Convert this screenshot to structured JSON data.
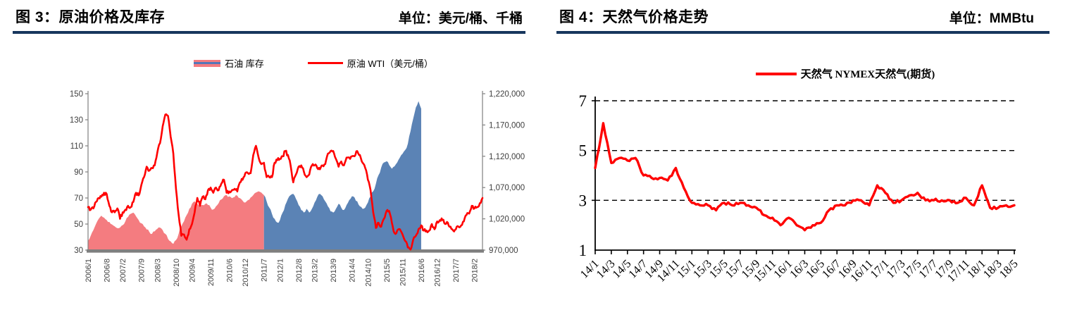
{
  "headers": {
    "fig3": {
      "title": "图 3：原油价格及库存",
      "unit": "单位：美元/桶、千桶"
    },
    "fig4": {
      "title": "图 4：天然气价格走势",
      "unit": "单位：MMBtu"
    }
  },
  "colors": {
    "line_red": "#FF0000",
    "area_pink": "#F47C80",
    "area_blue": "#5B83B5",
    "legend_inner_blue": "#5577B8",
    "header_rule_navy": "#17365D",
    "axis_gray": "#808080",
    "baseline_gray": "#7F7F7F",
    "label_dark": "#3F3F3F",
    "black": "#000000"
  },
  "chart_data": [
    {
      "id": "fig3",
      "type": "line",
      "title": "图 3：原油价格及库存",
      "unit": "美元/桶、千桶",
      "x_start": "2006/1",
      "x_labels": [
        "2006/1",
        "2006/8",
        "2007/2",
        "2007/9",
        "2008/3",
        "2008/10",
        "2009/4",
        "2009/11",
        "2010/6",
        "2010/12",
        "2011/7",
        "2012/1",
        "2012/8",
        "2013/2",
        "2013/9",
        "2014/4",
        "2014/10",
        "2015/5",
        "2015/11",
        "2016/6",
        "2016/12",
        "2017/7",
        "2018/2"
      ],
      "left_axis": {
        "min": 30,
        "max": 150,
        "ticks": [
          30,
          50,
          70,
          90,
          110,
          130,
          150
        ]
      },
      "right_axis": {
        "min": 970000,
        "max": 1220000,
        "tick_labels": [
          "970,000",
          "1,020,000",
          "1,070,000",
          "1,120,000",
          "1,170,000",
          "1,220,000"
        ]
      },
      "legend": [
        {
          "label": "石油 库存",
          "swatch": "area",
          "fill": "#F47C80",
          "line": "#5577B8"
        },
        {
          "label": "原油 WTI（美元/桶）",
          "swatch": "line",
          "color": "#FF0000"
        }
      ],
      "series": [
        {
          "name": "石油 库存",
          "axis": "right",
          "kind": "area",
          "months": "2006/1-2016/6",
          "fill_until_2011_6": "#F47C80",
          "fill_from_2011_7": "#5B83B5",
          "color_switch_month": "2011/7",
          "values": [
            985000,
            993000,
            1002000,
            1012000,
            1020000,
            1025000,
            1022000,
            1018000,
            1015000,
            1011000,
            1008000,
            1005000,
            1006000,
            1010000,
            1016000,
            1023000,
            1028000,
            1030000,
            1024000,
            1018000,
            1013000,
            1008000,
            1003000,
            999000,
            996000,
            1000000,
            1004000,
            1006000,
            1002000,
            996000,
            988000,
            984000,
            980000,
            986000,
            996000,
            1008000,
            1016000,
            1026000,
            1036000,
            1044000,
            1048000,
            1044000,
            1040000,
            1042000,
            1044000,
            1042000,
            1038000,
            1035000,
            1040000,
            1045000,
            1051000,
            1056000,
            1058000,
            1056000,
            1053000,
            1055000,
            1057000,
            1053000,
            1049000,
            1046000,
            1050000,
            1054000,
            1058000,
            1062000,
            1064000,
            1062000,
            1058000,
            1048000,
            1038000,
            1028000,
            1020000,
            1014000,
            1018000,
            1030000,
            1042000,
            1052000,
            1058000,
            1060000,
            1052000,
            1042000,
            1034000,
            1030000,
            1036000,
            1030000,
            1036000,
            1046000,
            1055000,
            1060000,
            1056000,
            1048000,
            1040000,
            1032000,
            1030000,
            1036000,
            1044000,
            1038000,
            1034000,
            1042000,
            1050000,
            1056000,
            1054000,
            1048000,
            1040000,
            1036000,
            1038000,
            1046000,
            1056000,
            1064000,
            1076000,
            1090000,
            1102000,
            1110000,
            1112000,
            1106000,
            1100000,
            1104000,
            1110000,
            1118000,
            1124000,
            1130000,
            1140000,
            1160000,
            1180000,
            1198000,
            1208000,
            1196000
          ]
        },
        {
          "name": "原油 WTI（美元/桶）",
          "axis": "left",
          "kind": "line",
          "color": "#FF0000",
          "months": "2006/1-2018/5",
          "values": [
            63,
            61,
            62,
            67,
            70,
            71,
            74,
            73,
            64,
            59,
            59,
            62,
            54,
            59,
            61,
            64,
            63,
            67,
            74,
            72,
            80,
            86,
            94,
            91,
            93,
            95,
            105,
            112,
            125,
            134,
            133,
            117,
            104,
            77,
            57,
            41,
            42,
            38,
            46,
            50,
            59,
            70,
            64,
            71,
            69,
            76,
            78,
            74,
            78,
            76,
            81,
            84,
            74,
            75,
            76,
            77,
            75,
            82,
            84,
            89,
            89,
            89,
            103,
            110,
            101,
            96,
            97,
            86,
            86,
            86,
            97,
            99,
            100,
            102,
            106,
            103,
            95,
            82,
            88,
            94,
            95,
            90,
            86,
            88,
            95,
            95,
            93,
            92,
            95,
            96,
            104,
            106,
            106,
            100,
            94,
            98,
            95,
            101,
            101,
            102,
            102,
            106,
            103,
            97,
            93,
            84,
            76,
            59,
            47,
            51,
            48,
            54,
            60,
            60,
            51,
            43,
            45,
            46,
            42,
            37,
            32,
            30,
            38,
            41,
            46,
            49,
            45,
            45,
            45,
            50,
            46,
            52,
            53,
            53,
            50,
            51,
            48,
            45,
            46,
            48,
            49,
            52,
            57,
            58,
            64,
            62,
            63,
            66,
            70
          ]
        }
      ]
    },
    {
      "id": "fig4",
      "type": "line",
      "title": "图 4：天然气价格走势",
      "unit": "MMBtu",
      "x_start": "14/1",
      "x_labels": [
        "14/1",
        "14/3",
        "14/5",
        "14/7",
        "14/9",
        "14/11",
        "15/1",
        "15/3",
        "15/5",
        "15/7",
        "15/9",
        "15/11",
        "16/1",
        "16/3",
        "16/5",
        "16/7",
        "16/9",
        "16/11",
        "17/1",
        "17/3",
        "17/5",
        "17/7",
        "17/9",
        "17/11",
        "18/1",
        "18/3",
        "18/5"
      ],
      "y_axis": {
        "min": 1,
        "max": 7,
        "ticks": [
          1,
          3,
          5,
          7
        ],
        "dashed_gridlines": [
          3,
          5,
          7
        ]
      },
      "legend": [
        {
          "label": "天然气 NYMEX天然气(期货)",
          "swatch": "line",
          "color": "#FF0000"
        }
      ],
      "series": [
        {
          "name": "天然气 NYMEX天然气(期货)",
          "kind": "line",
          "color": "#FF0000",
          "months": "2014/1-2018/5",
          "values": [
            4.3,
            6.1,
            4.5,
            4.7,
            4.6,
            4.7,
            4.0,
            3.9,
            3.9,
            3.8,
            4.3,
            3.5,
            2.9,
            2.8,
            2.8,
            2.6,
            2.9,
            2.8,
            2.9,
            2.8,
            2.7,
            2.4,
            2.3,
            2.0,
            2.3,
            2.0,
            1.8,
            2.0,
            2.1,
            2.6,
            2.8,
            2.8,
            3.0,
            3.0,
            2.8,
            3.6,
            3.3,
            2.9,
            3.0,
            3.2,
            3.3,
            3.0,
            3.0,
            3.0,
            3.0,
            2.9,
            3.1,
            2.8,
            3.6,
            2.7,
            2.7,
            2.8,
            2.8
          ]
        }
      ]
    }
  ]
}
